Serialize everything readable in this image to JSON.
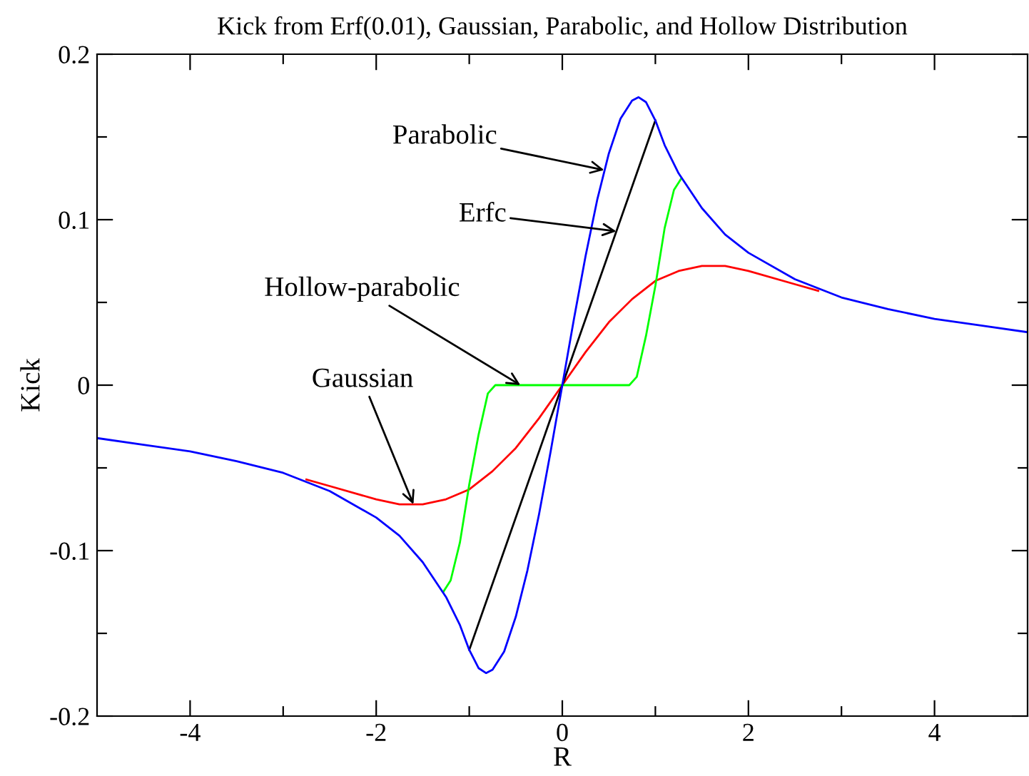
{
  "chart_data": {
    "type": "line",
    "title": "Kick from Erf(0.01), Gaussian, Parabolic, and Hollow Distribution",
    "xlabel": "R",
    "ylabel": "Kick",
    "xlim": [
      -5,
      5
    ],
    "ylim": [
      -0.2,
      0.2
    ],
    "xticks": [
      -4,
      {
        "value": -3,
        "label": null
      },
      -2,
      {
        "value": -1,
        "label": null
      },
      0,
      {
        "value": 1,
        "label": null
      },
      2,
      {
        "value": 3,
        "label": null
      },
      4
    ],
    "yticks": [
      -0.2,
      {
        "value": -0.15,
        "label": null
      },
      -0.1,
      {
        "value": -0.05,
        "label": null
      },
      0,
      {
        "value": 0.05,
        "label": null
      },
      0.1,
      {
        "value": 0.15,
        "label": null
      },
      0.2
    ],
    "grid": false,
    "legend": false,
    "marker": "none",
    "line_style": "solid",
    "series": [
      {
        "color": "#ff0000",
        "x": [
          -2.75,
          -2.5,
          -2,
          -1.75,
          -1.5,
          -1.25,
          -1,
          -0.75,
          -0.5,
          -0.25,
          0,
          0.25,
          0.5,
          0.75,
          1,
          1.25,
          1.5,
          1.75,
          2,
          2.5,
          2.75
        ],
        "values": [
          -0.057,
          -0.061,
          -0.069,
          -0.072,
          -0.072,
          -0.069,
          -0.063,
          -0.052,
          -0.038,
          -0.02,
          0,
          0.02,
          0.038,
          0.052,
          0.063,
          0.069,
          0.072,
          0.072,
          0.069,
          0.061,
          0.057
        ]
      },
      {
        "color": "#00ff00",
        "x": [
          -1.28,
          -1.2,
          -1.1,
          -1,
          -0.9,
          -0.8,
          -0.72,
          0.72,
          0.8,
          0.9,
          1,
          1.1,
          1.2,
          1.28
        ],
        "values": [
          -0.125,
          -0.118,
          -0.095,
          -0.06,
          -0.03,
          -0.005,
          0,
          0,
          0.005,
          0.03,
          0.06,
          0.095,
          0.118,
          0.125
        ]
      },
      {
        "color": "#000000",
        "x": [
          -1,
          1
        ],
        "values": [
          -0.16,
          0.16
        ]
      },
      {
        "color": "#0000ff",
        "x": [
          -5,
          -4.5,
          -4,
          -3.5,
          -3,
          -2.5,
          -2,
          -1.75,
          -1.5,
          -1.25,
          -1.1,
          -1,
          -0.9,
          -0.82,
          -0.75,
          -0.625,
          -0.5,
          -0.375,
          -0.25,
          -0.125,
          0,
          0.125,
          0.25,
          0.375,
          0.5,
          0.625,
          0.75,
          0.82,
          0.9,
          1,
          1.1,
          1.25,
          1.5,
          1.75,
          2,
          2.5,
          3,
          3.5,
          4,
          4.5,
          5
        ],
        "values": [
          -0.032,
          -0.036,
          -0.04,
          -0.046,
          -0.053,
          -0.064,
          -0.08,
          -0.091,
          -0.107,
          -0.128,
          -0.145,
          -0.16,
          -0.171,
          -0.174,
          -0.172,
          -0.161,
          -0.14,
          -0.112,
          -0.078,
          -0.04,
          0,
          0.04,
          0.078,
          0.112,
          0.14,
          0.161,
          0.172,
          0.174,
          0.171,
          0.16,
          0.145,
          0.128,
          0.107,
          0.091,
          0.08,
          0.064,
          0.053,
          0.046,
          0.04,
          0.036,
          0.032
        ]
      }
    ],
    "annotations": [
      {
        "text": "Parabolic",
        "x": 0.45,
        "y": 0.13
      },
      {
        "text": "Erfc",
        "x": 0.58,
        "y": 0.093
      },
      {
        "text": "Hollow-parabolic",
        "x": -0.45,
        "y": 0
      },
      {
        "text": "Gaussian",
        "x": -1.6,
        "y": -0.072
      }
    ]
  }
}
